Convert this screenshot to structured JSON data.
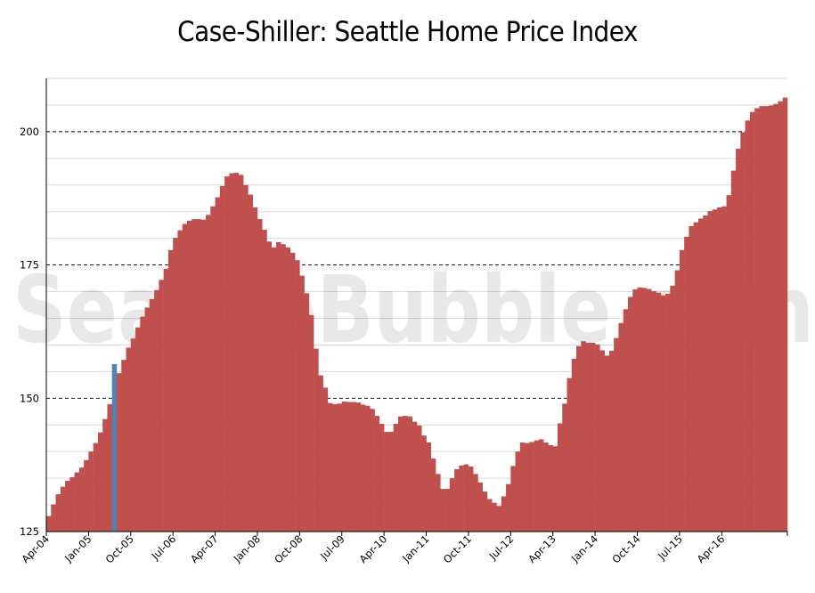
{
  "chart_data": {
    "type": "bar",
    "title": "Case-Shiller: Seattle Home Price Index",
    "watermark": "SeattleBubble.com",
    "xlabel": "",
    "ylabel": "",
    "ylim": [
      125,
      210
    ],
    "y_ticks": [
      125,
      150,
      175,
      200
    ],
    "dashed_gridlines": [
      150,
      175,
      200
    ],
    "grid": true,
    "start_month": "Apr-04",
    "x_tick_labels": [
      "Apr-04",
      "Jan-05",
      "Oct-05",
      "Jul-06",
      "Apr-07",
      "Jan-08",
      "Oct-08",
      "Jul-09",
      "Apr-10",
      "Jan-11",
      "Oct-11",
      "Jul-12",
      "Apr-13",
      "Jan-14",
      "Oct-14",
      "Jul-15",
      "Apr-16"
    ],
    "x_tick_labels_step_months": 9,
    "bar_color": "#c0504d",
    "highlight_color": "#4f81bd",
    "highlight_index": 14,
    "values": [
      127.9,
      130.1,
      132.0,
      133.4,
      134.5,
      135.2,
      136.1,
      137.0,
      138.4,
      140.0,
      141.6,
      143.6,
      146.1,
      148.9,
      156.4,
      154.7,
      157.2,
      159.5,
      161.2,
      163.3,
      165.3,
      167.0,
      168.6,
      170.3,
      172.2,
      174.3,
      177.8,
      180.1,
      181.5,
      182.7,
      183.3,
      183.6,
      183.6,
      183.5,
      184.4,
      186.0,
      187.7,
      189.8,
      191.6,
      192.2,
      192.3,
      191.9,
      190.0,
      188.2,
      185.8,
      183.6,
      181.6,
      179.4,
      178.3,
      179.3,
      178.9,
      178.3,
      177.3,
      175.9,
      173.0,
      169.7,
      165.6,
      159.3,
      154.3,
      152.0,
      149.1,
      148.9,
      149.0,
      149.4,
      149.3,
      149.3,
      149.2,
      148.8,
      148.6,
      148.0,
      146.7,
      145.2,
      143.7,
      143.7,
      145.2,
      146.6,
      146.7,
      146.6,
      145.6,
      144.9,
      143.0,
      141.7,
      138.7,
      135.8,
      133.0,
      133.0,
      135.0,
      136.7,
      137.4,
      137.6,
      137.2,
      135.8,
      134.2,
      132.5,
      131.1,
      130.4,
      129.8,
      131.6,
      133.9,
      137.3,
      140.0,
      141.7,
      141.6,
      141.8,
      142.1,
      142.3,
      141.7,
      141.2,
      141.0,
      145.3,
      149.0,
      153.8,
      157.4,
      159.8,
      160.7,
      160.4,
      160.4,
      160.1,
      159.0,
      158.0,
      158.9,
      161.3,
      164.1,
      166.7,
      169.0,
      170.4,
      170.8,
      170.7,
      170.5,
      170.1,
      169.8,
      169.3,
      169.6,
      171.1,
      174.0,
      177.8,
      180.3,
      182.3,
      183.0,
      183.7,
      184.3,
      185.1,
      185.4,
      185.8,
      186.0,
      188.1,
      192.7,
      196.8,
      199.9,
      202.1,
      203.7,
      204.4,
      204.8,
      204.8,
      204.9,
      205.2,
      205.7,
      206.4
    ]
  }
}
